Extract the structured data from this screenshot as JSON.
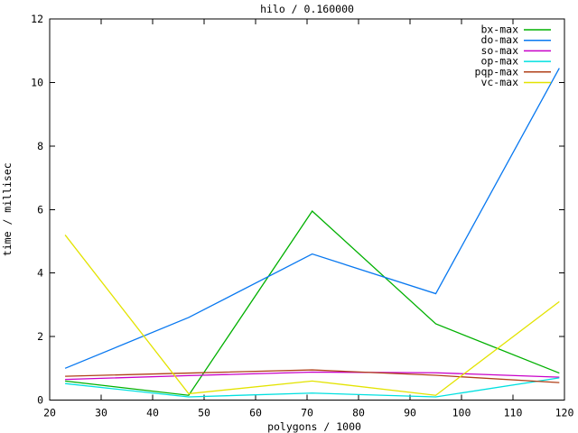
{
  "chart_data": {
    "type": "line",
    "title": "hilo / 0.160000",
    "xlabel": "polygons / 1000",
    "ylabel": "time / millisec",
    "xlim": [
      20,
      120
    ],
    "ylim": [
      0,
      12
    ],
    "xticks": [
      20,
      30,
      40,
      50,
      60,
      70,
      80,
      90,
      100,
      110,
      120
    ],
    "yticks": [
      0,
      2,
      4,
      6,
      8,
      10,
      12
    ],
    "grid": false,
    "legend_position": "top-right-inside",
    "background": "#ffffff",
    "border_color": "#000000",
    "x": [
      23,
      47,
      71,
      95,
      119
    ],
    "series": [
      {
        "name": "bx-max",
        "color": "#00b000",
        "values": [
          0.6,
          0.15,
          5.95,
          2.4,
          0.85
        ]
      },
      {
        "name": "do-max",
        "color": "#0878f0",
        "values": [
          1.0,
          2.6,
          4.6,
          3.35,
          10.45
        ]
      },
      {
        "name": "so-max",
        "color": "#c800c8",
        "values": [
          0.65,
          0.77,
          0.88,
          0.86,
          0.72
        ]
      },
      {
        "name": "op-max",
        "color": "#00e0e0",
        "values": [
          0.52,
          0.1,
          0.22,
          0.1,
          0.7
        ]
      },
      {
        "name": "pqp-max",
        "color": "#b04018",
        "values": [
          0.75,
          0.85,
          0.95,
          0.78,
          0.55
        ]
      },
      {
        "name": "vc-max",
        "color": "#e3e300",
        "values": [
          5.2,
          0.2,
          0.6,
          0.15,
          3.1
        ]
      }
    ]
  }
}
